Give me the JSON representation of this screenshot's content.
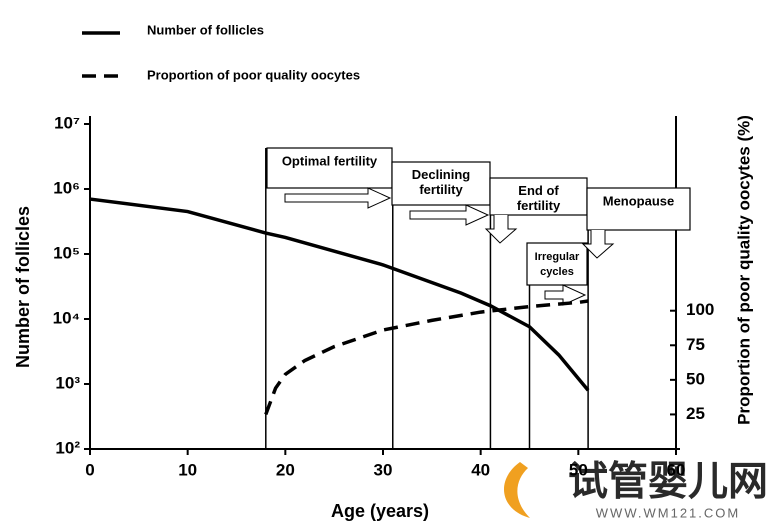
{
  "chart_data": {
    "type": "line",
    "xlabel": "Age (years)",
    "ylabel": "Number of follicles",
    "y2label": "Proportion of poor quality oocytes (%)",
    "xlim": [
      0,
      60
    ],
    "xticks": [
      0,
      10,
      20,
      30,
      40,
      50,
      60
    ],
    "ylim": [
      100,
      10000000
    ],
    "ylog": true,
    "yticks": [
      {
        "value": 100,
        "label": "10²"
      },
      {
        "value": 1000,
        "label": "10³"
      },
      {
        "value": 10000,
        "label": "10⁴"
      },
      {
        "value": 100000,
        "label": "10⁵"
      },
      {
        "value": 1000000,
        "label": "10⁶"
      },
      {
        "value": 10000000,
        "label": "10⁷"
      }
    ],
    "y2lim": [
      0,
      235
    ],
    "y2ticks": [
      25,
      50,
      75,
      100
    ],
    "legend": "top-left",
    "series": [
      {
        "name": "Number of follicles",
        "color": "#000000",
        "style": "solid",
        "axis": "y",
        "x": [
          0,
          10,
          18,
          20,
          30,
          38,
          41,
          45,
          48,
          51
        ],
        "values": [
          700000,
          450000,
          210000,
          180000,
          68000,
          25000,
          16000,
          7600,
          2800,
          800
        ]
      },
      {
        "name": "Proportion of poor quality oocytes",
        "color": "#000000",
        "style": "dashed",
        "axis": "y2",
        "x": [
          18,
          19,
          20,
          22,
          25,
          30,
          35,
          40,
          45,
          50,
          51
        ],
        "values": [
          25,
          44,
          54,
          64,
          74,
          86,
          93,
          99,
          103,
          106,
          107
        ]
      }
    ],
    "phase_boundaries": [
      18,
      31,
      41,
      45,
      51
    ],
    "annotations": [
      "Optimal fertility",
      "Declining fertility",
      "End of fertility",
      "Irregular cycles",
      "Menopause"
    ]
  },
  "watermark": {
    "text": "试管婴儿网",
    "url": "WWW.WM121.COM"
  }
}
